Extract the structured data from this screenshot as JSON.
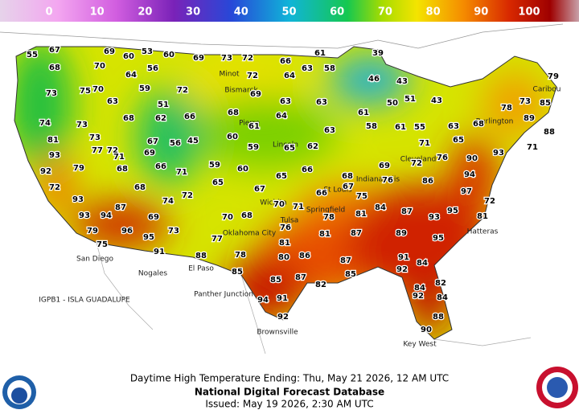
{
  "legend": {
    "ticks": [
      0,
      10,
      20,
      30,
      40,
      50,
      60,
      70,
      80,
      90,
      100
    ]
  },
  "temperatures": [
    55,
    67,
    68,
    69,
    60,
    53,
    60,
    69,
    73,
    72,
    66,
    61,
    39,
    58,
    64,
    63,
    46,
    43,
    70,
    56,
    64,
    72,
    70,
    59,
    72,
    73,
    75,
    63,
    51,
    69,
    63,
    63,
    50,
    51,
    43,
    78,
    73,
    85,
    79,
    74,
    73,
    68,
    62,
    66,
    68,
    61,
    64,
    63,
    61,
    58,
    61,
    55,
    63,
    68,
    89,
    88,
    81,
    73,
    77,
    72,
    67,
    56,
    45,
    60,
    59,
    65,
    62,
    71,
    65,
    71,
    93,
    69,
    71,
    79,
    68,
    66,
    59,
    60,
    66,
    65,
    69,
    72,
    76,
    90,
    93,
    92,
    71,
    72,
    72,
    74,
    68,
    65,
    67,
    70,
    71,
    66,
    67,
    68,
    76,
    86,
    94,
    97,
    93,
    87,
    72,
    93,
    94,
    69,
    70,
    68,
    75,
    78,
    81,
    84,
    87,
    93,
    95,
    81,
    79,
    96,
    95,
    73,
    77,
    76,
    75,
    91,
    88,
    81,
    81,
    87,
    89,
    95,
    78,
    80,
    86,
    91,
    85,
    87,
    82,
    87,
    85,
    92,
    84,
    85,
    82,
    94,
    91,
    84,
    92,
    84,
    92,
    88,
    90
  ],
  "places": [
    "Minot",
    "Bismarck",
    "Pierre",
    "Lincoln",
    "Wichita",
    "Tulsa",
    "Oklahoma City",
    "Springfield",
    "San Diego",
    "Nogales",
    "El Paso",
    "Brownsville",
    "Indianapolis",
    "St Louis",
    "Cleveland",
    "Hatteras",
    "Key West",
    "Panther Junction",
    "Burlington",
    "Caribou",
    "IGPB1 - ISLA GUADALUPE"
  ],
  "footer": {
    "product": "Daytime High Temperature Ending: Thu, May 21 2026, 12 AM UTC",
    "source": "National Digital Forecast Database",
    "issued": "Issued: May 19 2026, 2:30 AM UTC"
  }
}
